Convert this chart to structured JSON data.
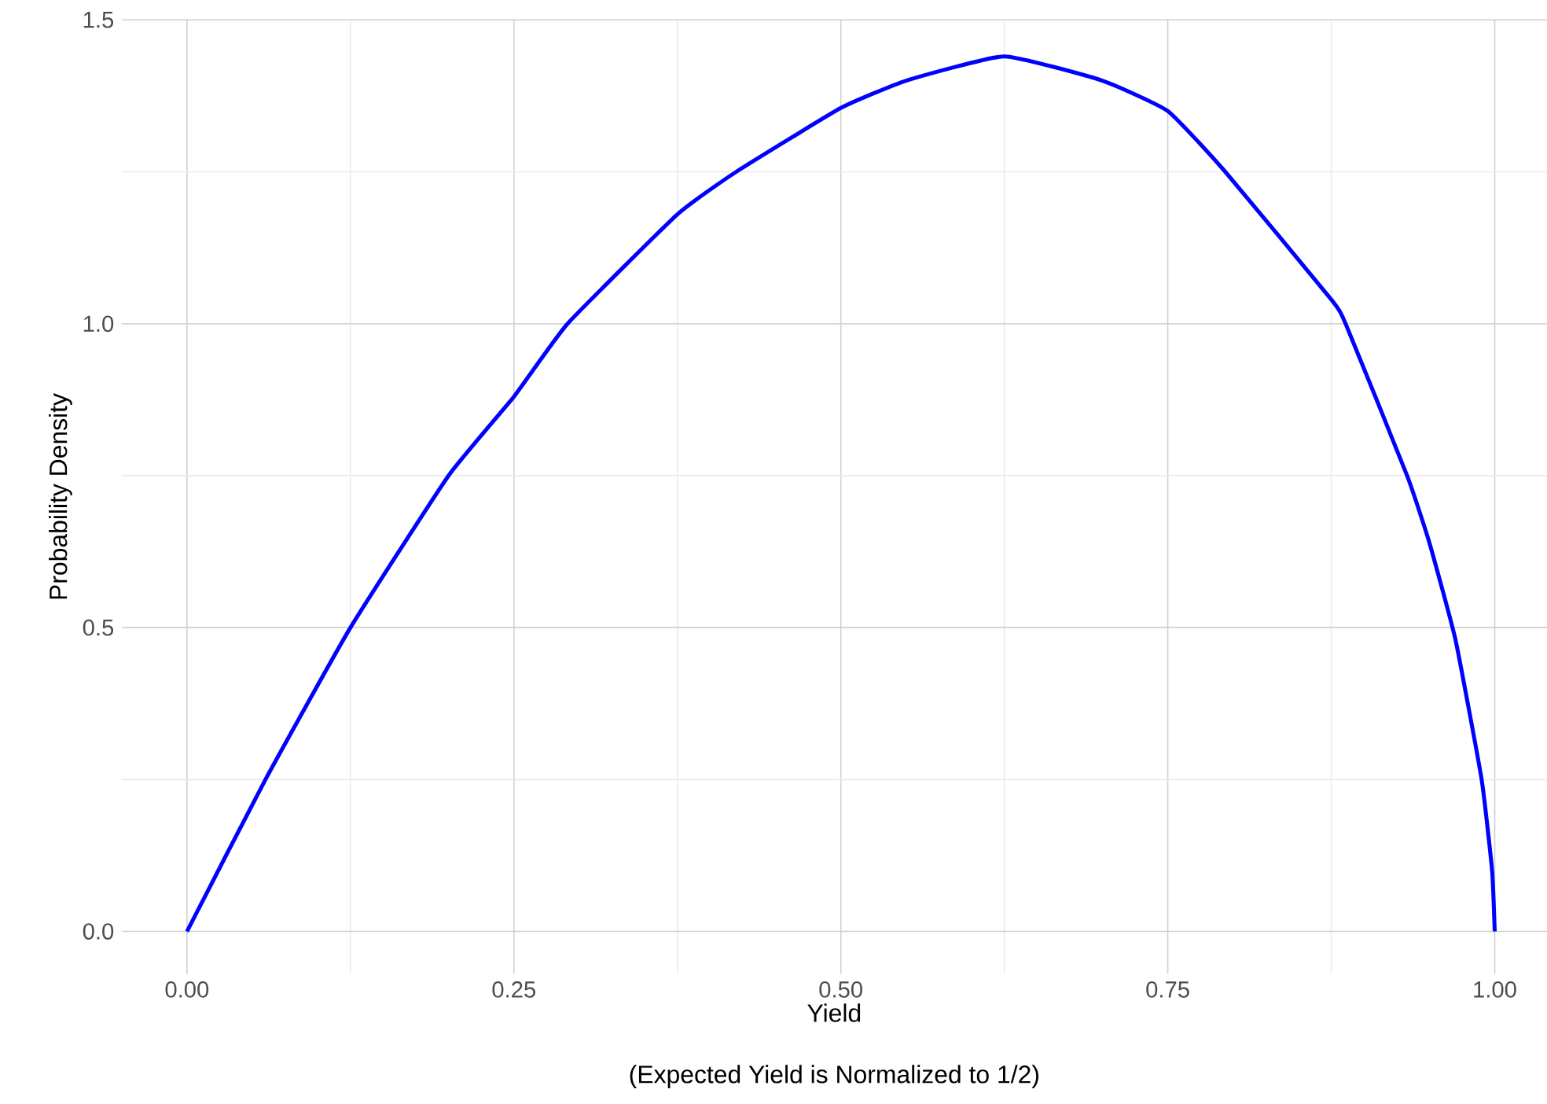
{
  "chart_data": {
    "type": "line",
    "xlabel": "Yield",
    "ylabel": "Probability Density",
    "annotations": [
      "(Expected Yield is Normalized to 1/2)"
    ],
    "x": [
      0,
      0.06,
      0.125,
      0.2,
      0.25,
      0.291,
      0.375,
      0.42,
      0.5,
      0.55,
      0.625,
      0.7,
      0.75,
      0.794,
      0.875,
      0.886,
      0.933,
      0.95,
      0.97,
      0.99,
      0.998,
      1
    ],
    "series": [
      {
        "color": "#0000ff",
        "values": [
          0,
          0.25,
          0.5,
          0.75,
          0.88,
          1.0,
          1.18,
          1.25,
          1.355,
          1.4,
          1.44,
          1.4,
          1.35,
          1.25,
          1.04,
          1.0,
          0.75,
          0.64,
          0.48,
          0.25,
          0.1,
          0
        ]
      }
    ],
    "xlim": [
      -0.05,
      1.04
    ],
    "ylim": [
      -0.07,
      1.5
    ],
    "xticks": [
      {
        "value": 0,
        "label": "0.00"
      },
      {
        "value": 0.25,
        "label": "0.25"
      },
      {
        "value": 0.5,
        "label": "0.50"
      },
      {
        "value": 0.75,
        "label": "0.75"
      },
      {
        "value": 1,
        "label": "1.00"
      }
    ],
    "yticks": [
      {
        "value": 0,
        "label": "0.0"
      },
      {
        "value": 0.5,
        "label": "0.5"
      },
      {
        "value": 1,
        "label": "1.0"
      },
      {
        "value": 1.5,
        "label": "1.5"
      }
    ],
    "grid": true,
    "marker": "none",
    "line_style": "solid"
  }
}
